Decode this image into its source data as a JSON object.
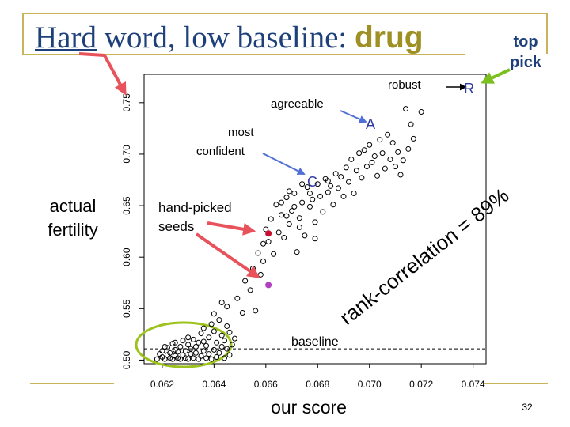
{
  "slide": {
    "title_hard": "Hard",
    "title_rest": " word, low baseline: ",
    "title_emph": "drug",
    "top_pick_line1": "top",
    "top_pick_line2": "pick",
    "side_label_line1": "actual",
    "side_label_line2": "fertility",
    "bottom_label": "our score",
    "slide_number": "32"
  },
  "annotations": {
    "robust": "robust",
    "agreeable": "agreeable",
    "most_confident_line1": "most",
    "most_confident_line2": "confident",
    "hand_picked_line1": "hand-picked",
    "hand_picked_line2": "seeds",
    "baseline": "baseline",
    "rank_correlation": "rank-correlation = 89%",
    "letter_r": "R",
    "letter_a": "A",
    "letter_c": "C"
  },
  "colors": {
    "title": "#1d3f7a",
    "accent": "#9e9024",
    "frame": "#c9b458",
    "red_arrow": "#e8525b",
    "green_arrow": "#7cc01f",
    "blue_arrow": "#4f6fd6",
    "ellipse": "#9dc21c",
    "seed_red": "#c8102e",
    "seed_purple": "#b040c0",
    "letter": "#2e3a9e"
  },
  "chart_data": {
    "type": "scatter",
    "xlim": [
      0.0613,
      0.0745
    ],
    "ylim": [
      0.4965,
      0.7775
    ],
    "xticks": [
      0.062,
      0.064,
      0.066,
      0.068,
      0.07,
      0.072,
      0.074
    ],
    "xtick_labels": [
      "0.062",
      "0.064",
      "0.066",
      "0.068",
      "0.070",
      "0.072",
      "0.074"
    ],
    "yticks": [
      0.5,
      0.55,
      0.6,
      0.65,
      0.7,
      0.75
    ],
    "ytick_labels": [
      "0.50",
      "0.55",
      "0.60",
      "0.65",
      "0.70",
      "0.75"
    ],
    "baseline_y": 0.511,
    "grid": false,
    "points": [
      [
        0.0618,
        0.501
      ],
      [
        0.0619,
        0.506
      ],
      [
        0.062,
        0.503
      ],
      [
        0.062,
        0.509
      ],
      [
        0.0621,
        0.501
      ],
      [
        0.0622,
        0.505
      ],
      [
        0.0622,
        0.512
      ],
      [
        0.0623,
        0.502
      ],
      [
        0.0623,
        0.507
      ],
      [
        0.0624,
        0.501
      ],
      [
        0.0624,
        0.516
      ],
      [
        0.0625,
        0.504
      ],
      [
        0.0625,
        0.51
      ],
      [
        0.0626,
        0.502
      ],
      [
        0.0626,
        0.508
      ],
      [
        0.0627,
        0.501
      ],
      [
        0.0627,
        0.513
      ],
      [
        0.0628,
        0.505
      ],
      [
        0.0628,
        0.519
      ],
      [
        0.0629,
        0.502
      ],
      [
        0.0629,
        0.509
      ],
      [
        0.063,
        0.501
      ],
      [
        0.063,
        0.515
      ],
      [
        0.0631,
        0.506
      ],
      [
        0.0631,
        0.511
      ],
      [
        0.0632,
        0.502
      ],
      [
        0.0632,
        0.52
      ],
      [
        0.0633,
        0.507
      ],
      [
        0.0633,
        0.513
      ],
      [
        0.0634,
        0.501
      ],
      [
        0.0634,
        0.517
      ],
      [
        0.0635,
        0.504
      ],
      [
        0.0635,
        0.526
      ],
      [
        0.0636,
        0.509
      ],
      [
        0.0636,
        0.531
      ],
      [
        0.0637,
        0.502
      ],
      [
        0.0637,
        0.514
      ],
      [
        0.0638,
        0.506
      ],
      [
        0.0638,
        0.522
      ],
      [
        0.0639,
        0.501
      ],
      [
        0.0639,
        0.535
      ],
      [
        0.064,
        0.51
      ],
      [
        0.064,
        0.528
      ],
      [
        0.0641,
        0.503
      ],
      [
        0.0641,
        0.517
      ],
      [
        0.0642,
        0.507
      ],
      [
        0.0642,
        0.539
      ],
      [
        0.0643,
        0.513
      ],
      [
        0.0643,
        0.524
      ],
      [
        0.0644,
        0.502
      ],
      [
        0.0644,
        0.519
      ],
      [
        0.0645,
        0.511
      ],
      [
        0.0645,
        0.533
      ],
      [
        0.0646,
        0.505
      ],
      [
        0.0646,
        0.527
      ],
      [
        0.0647,
        0.515
      ],
      [
        0.0648,
        0.521
      ],
      [
        0.0621,
        0.513
      ],
      [
        0.0625,
        0.517
      ],
      [
        0.063,
        0.522
      ],
      [
        0.0636,
        0.518
      ],
      [
        0.064,
        0.545
      ],
      [
        0.0643,
        0.556
      ],
      [
        0.0645,
        0.552
      ],
      [
        0.0649,
        0.56
      ],
      [
        0.0651,
        0.546
      ],
      [
        0.0652,
        0.577
      ],
      [
        0.0654,
        0.568
      ],
      [
        0.0655,
        0.589
      ],
      [
        0.0656,
        0.548
      ],
      [
        0.0657,
        0.604
      ],
      [
        0.0658,
        0.583
      ],
      [
        0.0659,
        0.613
      ],
      [
        0.0659,
        0.596
      ],
      [
        0.066,
        0.627
      ],
      [
        0.0661,
        0.615
      ],
      [
        0.0662,
        0.637
      ],
      [
        0.0663,
        0.603
      ],
      [
        0.0664,
        0.651
      ],
      [
        0.0665,
        0.624
      ],
      [
        0.0666,
        0.641
      ],
      [
        0.0667,
        0.619
      ],
      [
        0.0668,
        0.658
      ],
      [
        0.0669,
        0.632
      ],
      [
        0.067,
        0.645
      ],
      [
        0.0671,
        0.662
      ],
      [
        0.0672,
        0.605
      ],
      [
        0.0673,
        0.638
      ],
      [
        0.0674,
        0.653
      ],
      [
        0.0675,
        0.621
      ],
      [
        0.0676,
        0.668
      ],
      [
        0.0677,
        0.649
      ],
      [
        0.0678,
        0.656
      ],
      [
        0.0679,
        0.634
      ],
      [
        0.068,
        0.671
      ],
      [
        0.0681,
        0.659
      ],
      [
        0.0682,
        0.644
      ],
      [
        0.0683,
        0.676
      ],
      [
        0.0684,
        0.663
      ],
      [
        0.0685,
        0.669
      ],
      [
        0.0686,
        0.651
      ],
      [
        0.0687,
        0.681
      ],
      [
        0.0688,
        0.667
      ],
      [
        0.0689,
        0.678
      ],
      [
        0.069,
        0.659
      ],
      [
        0.0691,
        0.687
      ],
      [
        0.0692,
        0.673
      ],
      [
        0.0693,
        0.695
      ],
      [
        0.0694,
        0.662
      ],
      [
        0.0695,
        0.684
      ],
      [
        0.0696,
        0.701
      ],
      [
        0.0697,
        0.677
      ],
      [
        0.0698,
        0.704
      ],
      [
        0.0699,
        0.688
      ],
      [
        0.07,
        0.709
      ],
      [
        0.0701,
        0.692
      ],
      [
        0.0702,
        0.698
      ],
      [
        0.0703,
        0.679
      ],
      [
        0.0704,
        0.714
      ],
      [
        0.0705,
        0.701
      ],
      [
        0.0706,
        0.686
      ],
      [
        0.0707,
        0.719
      ],
      [
        0.0708,
        0.695
      ],
      [
        0.0709,
        0.711
      ],
      [
        0.071,
        0.688
      ],
      [
        0.0711,
        0.702
      ],
      [
        0.0712,
        0.68
      ],
      [
        0.0713,
        0.694
      ],
      [
        0.0715,
        0.705
      ],
      [
        0.0716,
        0.729
      ],
      [
        0.0714,
        0.744
      ],
      [
        0.0717,
        0.715
      ],
      [
        0.072,
        0.741
      ],
      [
        0.0666,
        0.653
      ],
      [
        0.0671,
        0.649
      ],
      [
        0.0669,
        0.664
      ],
      [
        0.0674,
        0.671
      ],
      [
        0.0677,
        0.662
      ],
      [
        0.0679,
        0.618
      ],
      [
        0.0684,
        0.674
      ],
      [
        0.0668,
        0.64
      ],
      [
        0.0673,
        0.629
      ]
    ],
    "highlights": [
      {
        "x": 0.0661,
        "y": 0.623,
        "color": "seed_red"
      },
      {
        "x": 0.0661,
        "y": 0.573,
        "color": "seed_purple"
      }
    ],
    "labeled_points": [
      {
        "x": 0.072,
        "y": 0.741,
        "letter": "R"
      },
      {
        "x": 0.0714,
        "y": 0.717,
        "letter": "A"
      },
      {
        "x": 0.0677,
        "y": 0.664,
        "letter": "C"
      }
    ]
  }
}
